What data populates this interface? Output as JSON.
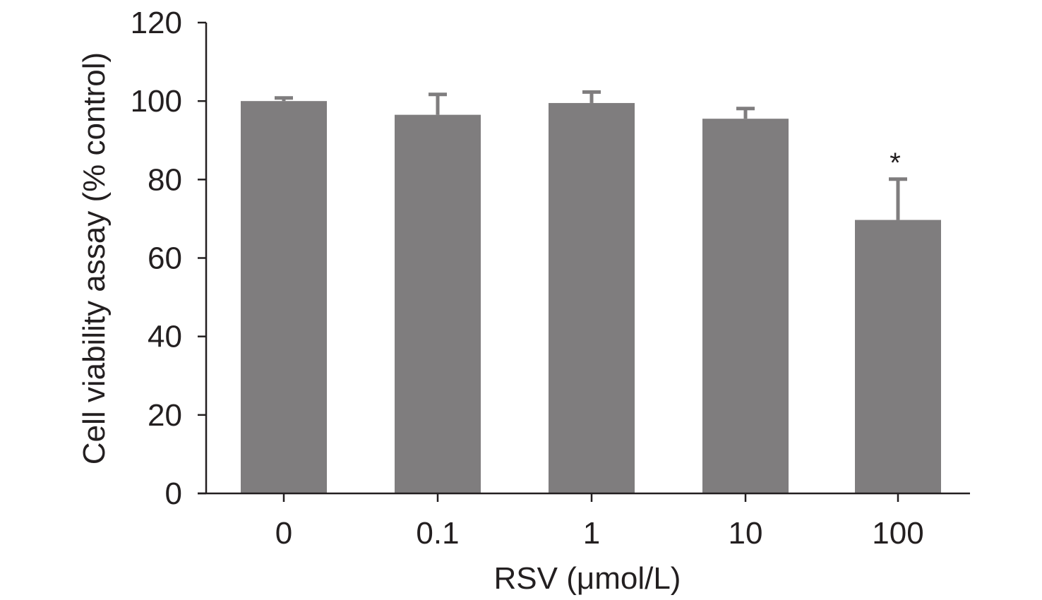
{
  "chart_data": {
    "type": "bar",
    "categories": [
      "0",
      "0.1",
      "1",
      "10",
      "100"
    ],
    "values": [
      100,
      96.5,
      99.5,
      95.5,
      69.7
    ],
    "errors": [
      0.8,
      5.2,
      2.8,
      2.6,
      10.4
    ],
    "annotations": [
      "",
      "",
      "",
      "",
      "*"
    ],
    "title": "",
    "xlabel": "RSV (μmol/L)",
    "ylabel": "Cell viability assay (% control)",
    "ylim": [
      0,
      120
    ],
    "yticks": [
      0,
      20,
      40,
      60,
      80,
      100,
      120
    ],
    "grid": false,
    "legend": "none",
    "bar_color": "#7f7d7e",
    "error_color": "#7f7d7e",
    "axis_color": "#231f20"
  }
}
